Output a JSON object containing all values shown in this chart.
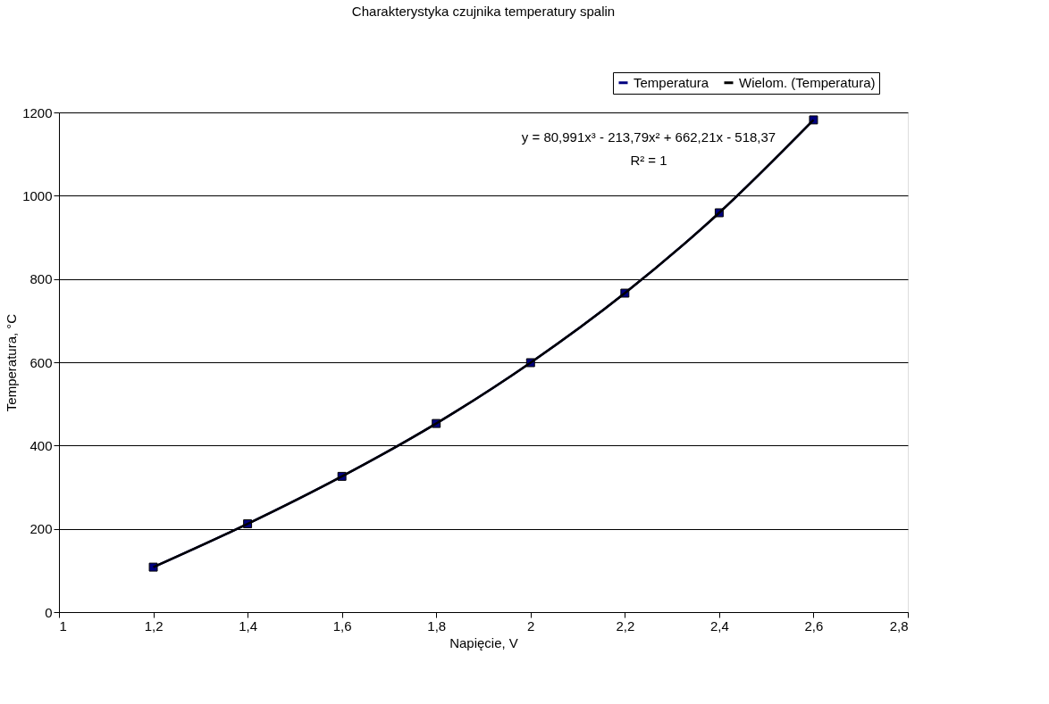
{
  "chart_data": {
    "type": "line",
    "title": "Charakterystyka czujnika temperatury spalin",
    "xlabel": "Napięcie, V",
    "ylabel": "Temperatura, °C",
    "x": [
      1.2,
      1.4,
      1.6,
      1.8,
      2.0,
      2.2,
      2.4,
      2.6
    ],
    "series": [
      {
        "name": "Temperatura",
        "color": "#000080",
        "values": [
          108,
          212,
          326,
          453,
          599,
          766,
          959,
          1182
        ],
        "marker": "square"
      },
      {
        "name": "Wielom. (Temperatura)",
        "color": "#000000",
        "type": "line",
        "values": [
          108,
          212,
          326,
          453,
          599,
          766,
          959,
          1182
        ],
        "marker": "none"
      }
    ],
    "xlim": [
      1,
      2.8
    ],
    "xticks": [
      1,
      {
        "value": 1.2,
        "label": "1,2"
      },
      {
        "value": 1.4,
        "label": "1,4"
      },
      {
        "value": 1.6,
        "label": "1,6"
      },
      {
        "value": 1.8,
        "label": "1,8"
      },
      2,
      {
        "value": 2.2,
        "label": "2,2"
      },
      {
        "value": 2.4,
        "label": "2,4"
      },
      {
        "value": 2.6,
        "label": "2,6"
      },
      {
        "value": 2.8,
        "label": "2,8"
      }
    ],
    "ylim": [
      0,
      1200
    ],
    "yticks": [
      0,
      200,
      400,
      600,
      800,
      1000,
      1200
    ],
    "grid": "y",
    "legend": "top right",
    "annotations": [
      "y = 80,991x³ - 213,79x² + 662,21x - 518,37",
      "R² = 1"
    ]
  }
}
